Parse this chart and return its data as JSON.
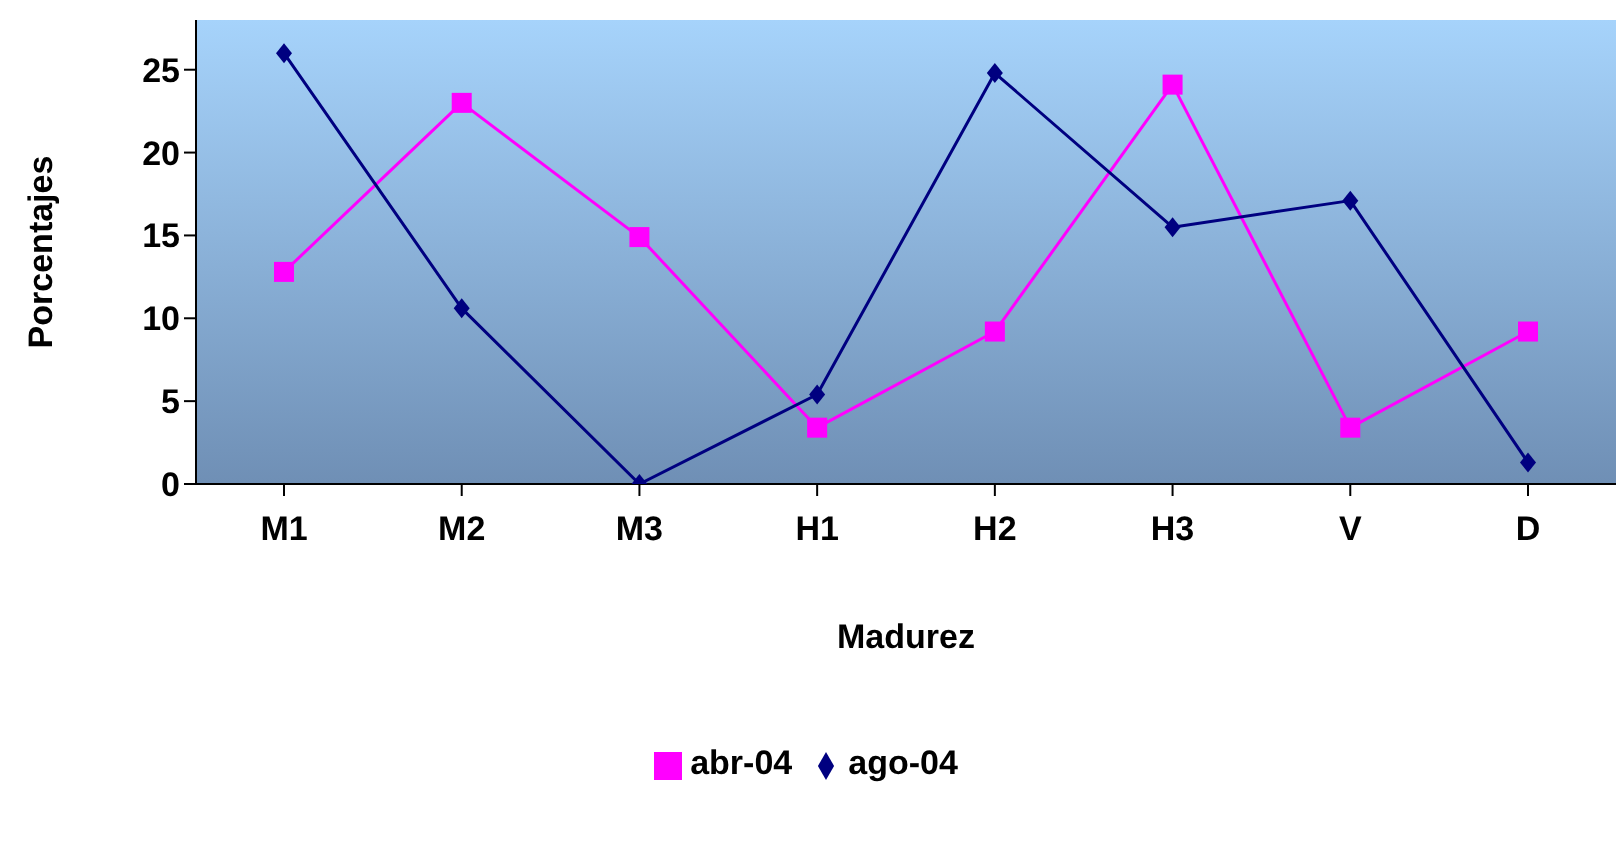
{
  "chart_data": {
    "type": "line",
    "xlabel": "Madurez",
    "ylabel": "Porcentajes",
    "categories": [
      "M1",
      "M2",
      "M3",
      "H1",
      "H2",
      "H3",
      "V",
      "D"
    ],
    "series": [
      {
        "name": "abr-04",
        "color": "#ff00ff",
        "marker": "square",
        "values": [
          12.8,
          23.0,
          14.9,
          3.4,
          9.2,
          24.1,
          3.4,
          9.2
        ]
      },
      {
        "name": "ago-04",
        "color": "#000080",
        "marker": "diamond",
        "values": [
          26.0,
          10.6,
          0,
          5.4,
          24.8,
          15.5,
          17.1,
          1.3
        ]
      }
    ],
    "ylim": [
      0,
      28
    ],
    "yticks": [
      0,
      5,
      10,
      15,
      20,
      25
    ],
    "grid": false,
    "legend": "bottom",
    "line_style": "solid"
  }
}
